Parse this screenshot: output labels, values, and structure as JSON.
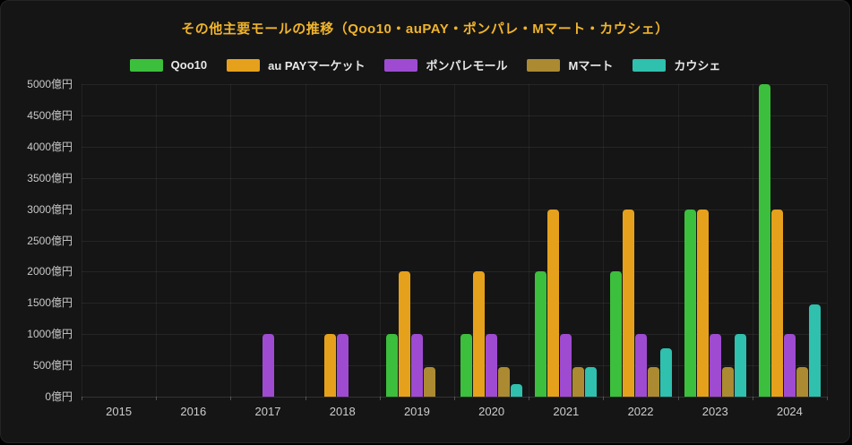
{
  "title": "その他主要モールの推移（Qoo10・auPAY・ポンパレ・Mマート・カウシェ）",
  "chart_data": {
    "type": "bar",
    "title": "その他主要モールの推移（Qoo10・auPAY・ポンパレ・Mマート・カウシェ）",
    "unit": "億円",
    "categories": [
      "2015",
      "2016",
      "2017",
      "2018",
      "2019",
      "2020",
      "2021",
      "2022",
      "2023",
      "2024"
    ],
    "series": [
      {
        "name": "Qoo10",
        "color": "#3cbf3c",
        "values": [
          null,
          null,
          null,
          null,
          1000,
          1000,
          2000,
          2000,
          3000,
          5000
        ]
      },
      {
        "name": "au PAYマーケット",
        "color": "#e6a11c",
        "values": [
          null,
          null,
          null,
          1000,
          2000,
          2000,
          3000,
          3000,
          3000,
          3000
        ]
      },
      {
        "name": "ポンパレモール",
        "color": "#9e4bd2",
        "values": [
          null,
          null,
          1000,
          1000,
          1000,
          1000,
          1000,
          1000,
          1000,
          1000
        ]
      },
      {
        "name": "Mマート",
        "color": "#ab8a32",
        "values": [
          null,
          null,
          null,
          null,
          480,
          480,
          480,
          480,
          480,
          480
        ]
      },
      {
        "name": "カウシェ",
        "color": "#2fc0ae",
        "values": [
          null,
          null,
          null,
          null,
          null,
          200,
          480,
          780,
          1000,
          1480
        ]
      }
    ],
    "yticks": [
      0,
      500,
      1000,
      1500,
      2000,
      2500,
      3000,
      3500,
      4000,
      4500,
      5000
    ],
    "ytick_suffix": "億円",
    "ylim": [
      0,
      5000
    ],
    "legend_position": "top",
    "grid": true
  },
  "colors": {
    "page_bg": "#000000",
    "panel_bg": "#151515",
    "title": "#f0b42c",
    "axis_label": "#c9c9c9",
    "legend_label": "#e8e8e8"
  }
}
